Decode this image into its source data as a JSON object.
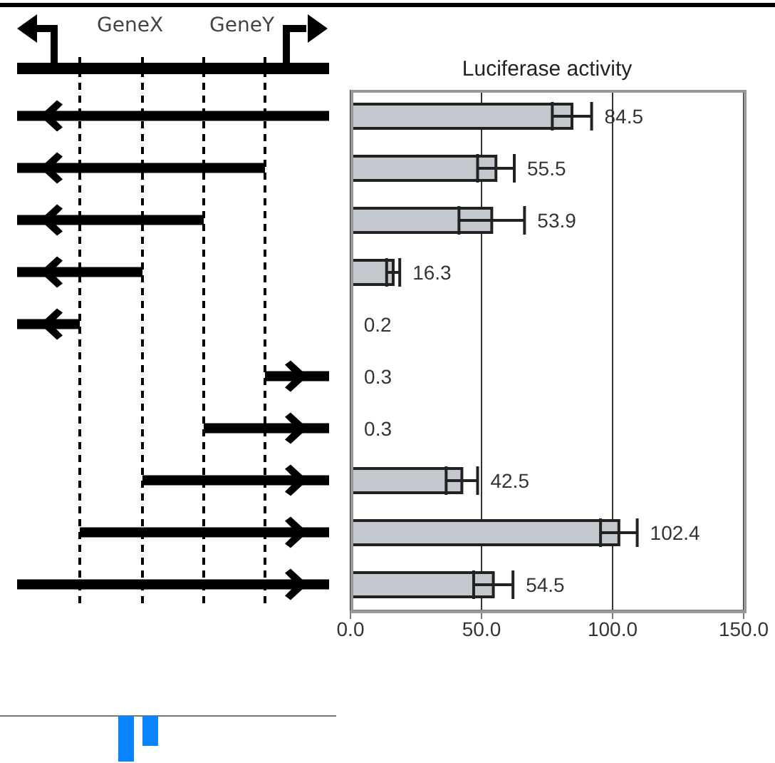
{
  "chart_data": {
    "type": "bar",
    "orientation": "horizontal",
    "title": "Luciferase activity",
    "categories": [
      null,
      null,
      null,
      null,
      null,
      null,
      null,
      null,
      null,
      null
    ],
    "values": [
      84.5,
      55.5,
      53.9,
      16.3,
      0.2,
      0.3,
      0.3,
      42.5,
      102.4,
      54.5
    ],
    "errors": [
      7.5,
      7,
      12.5,
      2.5,
      null,
      null,
      null,
      6,
      7,
      7.5
    ],
    "color": "#c3c7ce",
    "data_labels": true,
    "xlim": [
      0,
      150
    ],
    "xticks": [
      {
        "value": 0,
        "label": "0.0"
      },
      {
        "value": 50,
        "label": "50.0"
      },
      {
        "value": 100,
        "label": "100.0"
      },
      {
        "value": 150,
        "label": "150.0"
      }
    ],
    "grid": "x",
    "annotations": [
      "GeneX",
      "GeneY"
    ]
  }
}
